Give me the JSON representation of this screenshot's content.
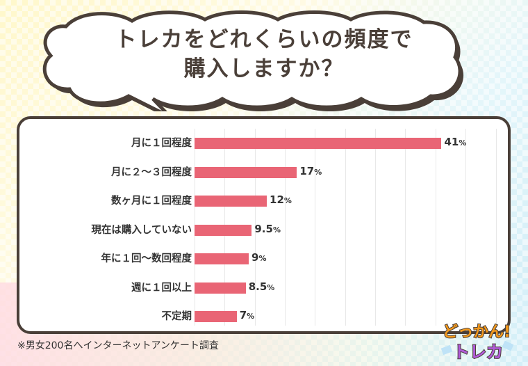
{
  "title": {
    "line1": "トレカをどれくらいの頻度で",
    "line2": "購入しますか？"
  },
  "footnote": "※男女200名へインターネットアンケート調査",
  "logo": {
    "line1": "どっかん!",
    "line2": "トレカ"
  },
  "colors": {
    "bar": "#e96575",
    "border": "#4a3f38",
    "text": "#333333"
  },
  "chart_data": {
    "type": "bar",
    "orientation": "horizontal",
    "title": "トレカをどれくらいの頻度で購入しますか？",
    "categories": [
      "月に１回程度",
      "月に２～３回程度",
      "数ヶ月に１回程度",
      "現在は購入していない",
      "年に１回～数回程度",
      "週に１回以上",
      "不定期"
    ],
    "values": [
      41,
      17,
      12,
      9.5,
      9,
      8.5,
      7
    ],
    "value_labels": [
      "41",
      "17",
      "12",
      "9.5",
      "9",
      "8.5",
      "7"
    ],
    "unit": "%",
    "xlabel": "",
    "ylabel": "",
    "xlim": [
      0,
      50
    ],
    "grid": true,
    "gridline_step": 5,
    "legend": null,
    "note": "※男女200名へインターネットアンケート調査"
  }
}
